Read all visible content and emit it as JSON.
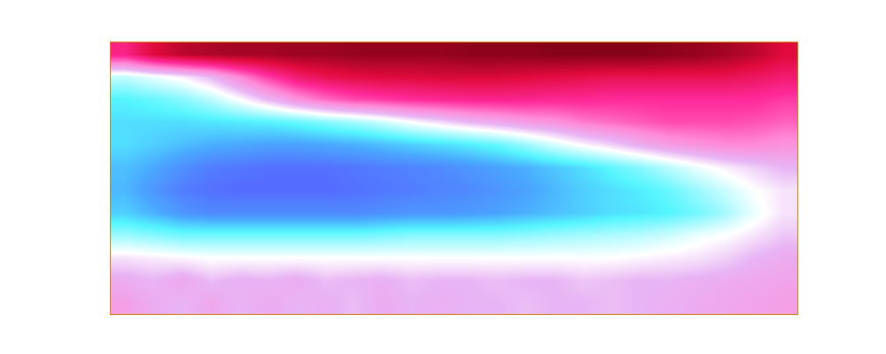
{
  "chart_data": {
    "type": "heatmap",
    "tick_labels": false,
    "zlim": [
      0,
      1
    ],
    "cells": [
      [
        0.75,
        0.85,
        0.9,
        0.92,
        0.93,
        0.93,
        0.94,
        0.94,
        0.95,
        0.95,
        0.95,
        0.95,
        0.96,
        0.96,
        0.96,
        0.97,
        0.97,
        0.97,
        0.97,
        0.96,
        0.95,
        0.93,
        0.9,
        0.85
      ],
      [
        0.36,
        0.4,
        0.44,
        0.5,
        0.6,
        0.7,
        0.78,
        0.82,
        0.84,
        0.85,
        0.85,
        0.86,
        0.86,
        0.86,
        0.85,
        0.84,
        0.83,
        0.82,
        0.82,
        0.82,
        0.82,
        0.82,
        0.8,
        0.78
      ],
      [
        0.25,
        0.27,
        0.3,
        0.35,
        0.42,
        0.5,
        0.58,
        0.64,
        0.68,
        0.7,
        0.72,
        0.73,
        0.74,
        0.74,
        0.74,
        0.73,
        0.73,
        0.72,
        0.72,
        0.72,
        0.72,
        0.72,
        0.72,
        0.7
      ],
      [
        0.22,
        0.22,
        0.22,
        0.23,
        0.24,
        0.25,
        0.27,
        0.3,
        0.33,
        0.37,
        0.42,
        0.46,
        0.5,
        0.53,
        0.56,
        0.58,
        0.62,
        0.64,
        0.66,
        0.68,
        0.68,
        0.68,
        0.67,
        0.65
      ],
      [
        0.22,
        0.2,
        0.18,
        0.16,
        0.15,
        0.14,
        0.14,
        0.15,
        0.16,
        0.18,
        0.2,
        0.22,
        0.24,
        0.27,
        0.32,
        0.38,
        0.43,
        0.47,
        0.52,
        0.56,
        0.58,
        0.6,
        0.6,
        0.58
      ],
      [
        0.18,
        0.15,
        0.11,
        0.08,
        0.07,
        0.06,
        0.06,
        0.06,
        0.07,
        0.08,
        0.09,
        0.1,
        0.12,
        0.14,
        0.16,
        0.19,
        0.22,
        0.26,
        0.3,
        0.35,
        0.4,
        0.44,
        0.47,
        0.5
      ],
      [
        0.17,
        0.12,
        0.08,
        0.06,
        0.05,
        0.05,
        0.05,
        0.05,
        0.06,
        0.07,
        0.08,
        0.09,
        0.1,
        0.12,
        0.14,
        0.17,
        0.2,
        0.22,
        0.24,
        0.27,
        0.32,
        0.37,
        0.42,
        0.45
      ],
      [
        0.2,
        0.16,
        0.12,
        0.1,
        0.1,
        0.1,
        0.1,
        0.1,
        0.1,
        0.11,
        0.12,
        0.12,
        0.13,
        0.14,
        0.16,
        0.18,
        0.2,
        0.22,
        0.23,
        0.25,
        0.28,
        0.33,
        0.4,
        0.45
      ],
      [
        0.32,
        0.3,
        0.28,
        0.28,
        0.28,
        0.28,
        0.28,
        0.28,
        0.28,
        0.29,
        0.3,
        0.3,
        0.3,
        0.3,
        0.31,
        0.32,
        0.33,
        0.34,
        0.35,
        0.37,
        0.4,
        0.42,
        0.45,
        0.48
      ],
      [
        0.45,
        0.44,
        0.43,
        0.42,
        0.42,
        0.42,
        0.42,
        0.42,
        0.42,
        0.42,
        0.42,
        0.42,
        0.42,
        0.42,
        0.42,
        0.42,
        0.42,
        0.42,
        0.43,
        0.44,
        0.45,
        0.47,
        0.5,
        0.52
      ],
      [
        0.52,
        0.5,
        0.53,
        0.49,
        0.51,
        0.5,
        0.52,
        0.49,
        0.5,
        0.51,
        0.49,
        0.5,
        0.5,
        0.49,
        0.5,
        0.5,
        0.48,
        0.49,
        0.5,
        0.5,
        0.51,
        0.52,
        0.53,
        0.54
      ],
      [
        0.55,
        0.52,
        0.5,
        0.53,
        0.5,
        0.52,
        0.5,
        0.51,
        0.49,
        0.52,
        0.5,
        0.51,
        0.5,
        0.5,
        0.49,
        0.5,
        0.5,
        0.49,
        0.5,
        0.51,
        0.52,
        0.53,
        0.54,
        0.55
      ]
    ]
  }
}
